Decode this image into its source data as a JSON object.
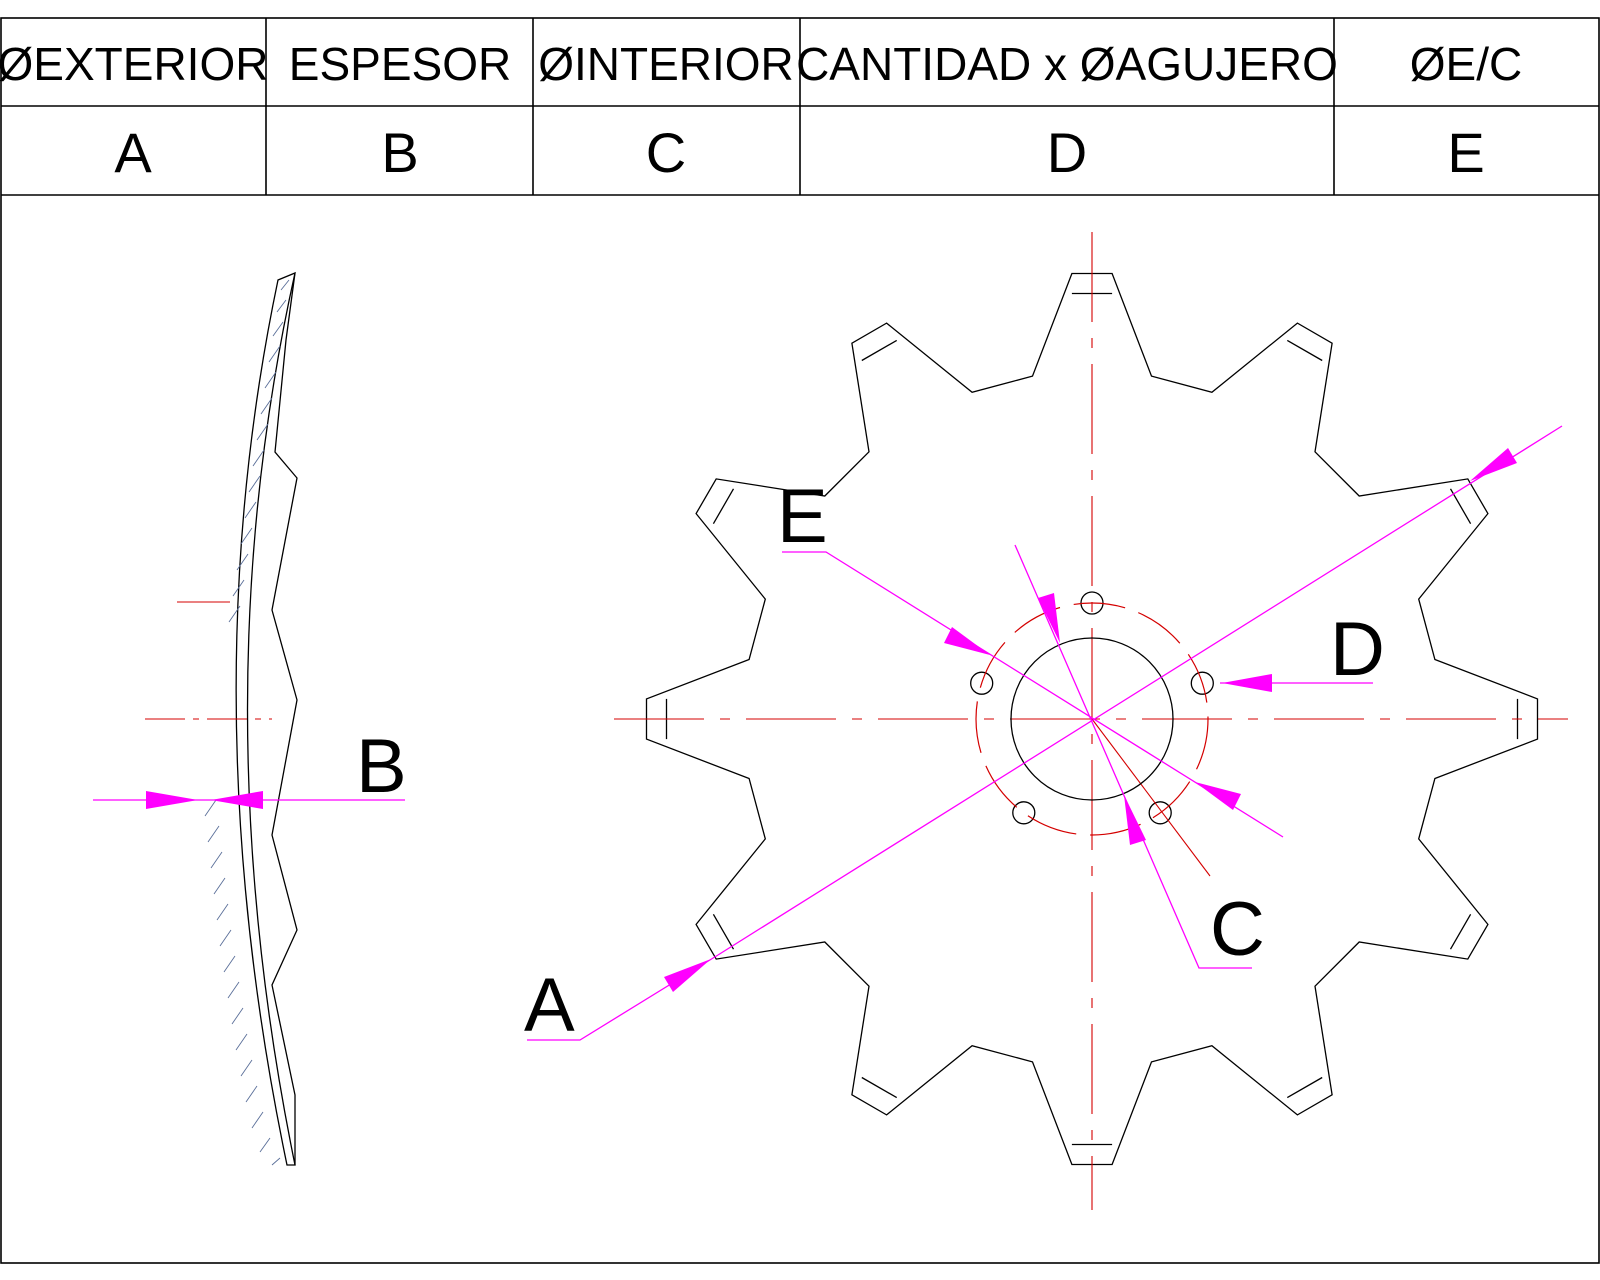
{
  "table": {
    "headers": [
      "ØEXTERIOR",
      "ESPESOR",
      "ØINTERIOR",
      "CANTIDAD x ØAGUJERO",
      "ØE/C"
    ],
    "letters": [
      "A",
      "B",
      "C",
      "D",
      "E"
    ]
  },
  "callouts": {
    "a": "A",
    "b": "B",
    "c": "C",
    "d": "D",
    "e": "E"
  },
  "disc": {
    "teeth_count": 12,
    "bolt_holes": 5
  },
  "colors": {
    "outline": "#000000",
    "center_lines": "#d40000",
    "dimensions": "#ff00ff",
    "section_hatch": "#5a6f99"
  }
}
